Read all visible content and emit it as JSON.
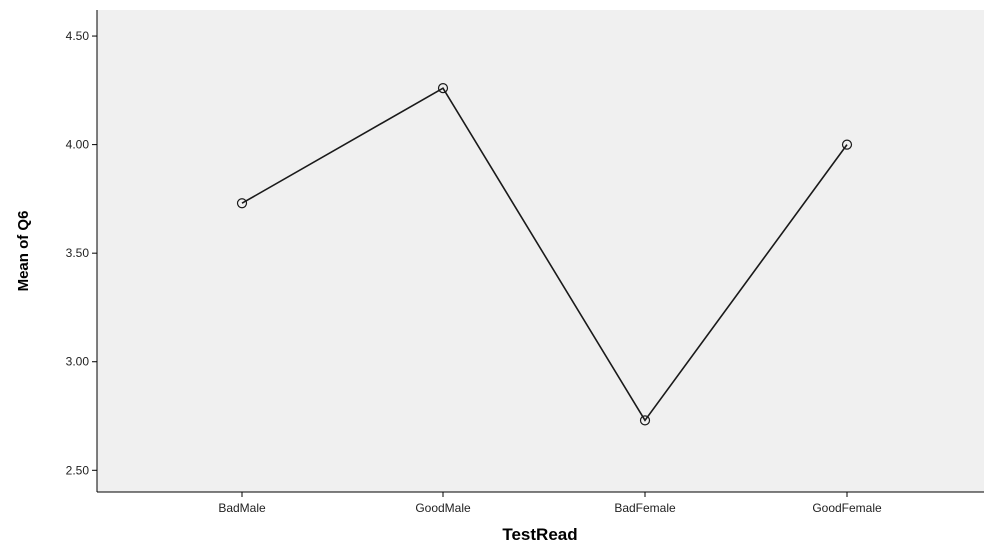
{
  "chart_data": {
    "type": "line",
    "categories": [
      "BadMale",
      "GoodMale",
      "BadFemale",
      "GoodFemale"
    ],
    "values": [
      3.73,
      4.26,
      2.73,
      4.0
    ],
    "xlabel": "TestRead",
    "ylabel": "Mean of Q6",
    "ylim": [
      2.4,
      4.62
    ],
    "yticks": [
      2.5,
      3.0,
      3.5,
      4.0,
      4.5
    ],
    "ytick_labels": [
      "2.50",
      "3.00",
      "3.50",
      "4.00",
      "4.50"
    ],
    "grid": false,
    "colors": {
      "plot_background": "#f0f0f0",
      "line": "#1a1a1a",
      "marker": "#1a1a1a"
    }
  }
}
